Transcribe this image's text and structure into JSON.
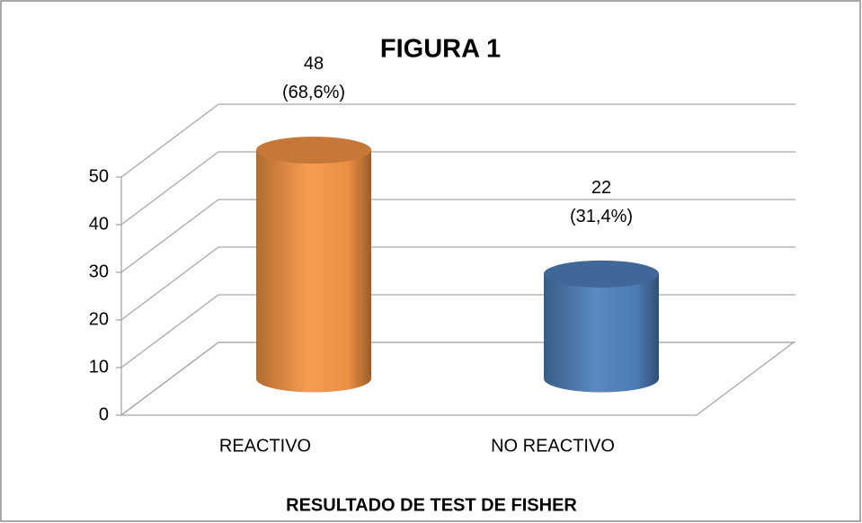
{
  "chart_data": {
    "type": "cylinder-bar",
    "title": "FIGURA 1",
    "x_label": "RESULTADO DE TEST DE FISHER",
    "categories": [
      "REACTIVO",
      "NO REACTIVO"
    ],
    "values": [
      48,
      22
    ],
    "value_labels": [
      "48\n(68,6%)",
      "22\n(31,4%)"
    ],
    "colors": [
      "#f79646",
      "#4f81bd"
    ],
    "ylim": [
      0,
      50
    ],
    "yticks": [
      0,
      10,
      20,
      30,
      40,
      50
    ],
    "grid": true
  }
}
